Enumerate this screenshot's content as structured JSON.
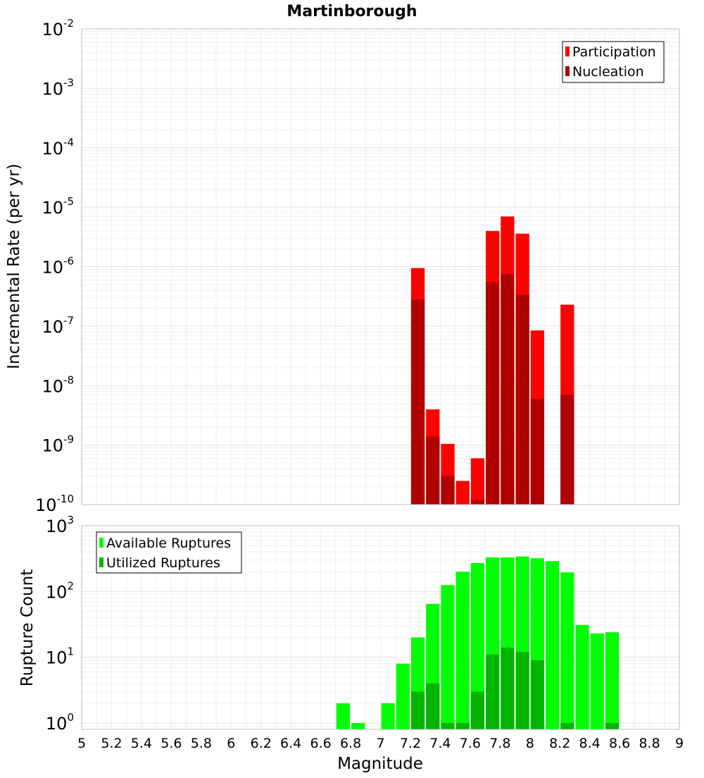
{
  "chart_data": [
    {
      "type": "bar",
      "title": "Martinborough",
      "ylabel": "Incremental Rate (per yr)",
      "xlabel": "",
      "yscale": "log",
      "ylim": [
        1e-10,
        0.01
      ],
      "xlim": [
        5,
        9
      ],
      "bar_width": 0.1,
      "grid": true,
      "legend_position": "top-right",
      "y_ticks": [
        {
          "mantissa": "10",
          "exp": "-10"
        },
        {
          "mantissa": "10",
          "exp": "-9"
        },
        {
          "mantissa": "10",
          "exp": "-8"
        },
        {
          "mantissa": "10",
          "exp": "-7"
        },
        {
          "mantissa": "10",
          "exp": "-6"
        },
        {
          "mantissa": "10",
          "exp": "-5"
        },
        {
          "mantissa": "10",
          "exp": "-4"
        },
        {
          "mantissa": "10",
          "exp": "-3"
        },
        {
          "mantissa": "10",
          "exp": "-2"
        }
      ],
      "series": [
        {
          "name": "Participation",
          "color": "#ff0000",
          "points": [
            {
              "x": 7.25,
              "y": 9.5e-07
            },
            {
              "x": 7.35,
              "y": 4e-09
            },
            {
              "x": 7.45,
              "y": 1.05e-09
            },
            {
              "x": 7.55,
              "y": 2.5e-10
            },
            {
              "x": 7.65,
              "y": 6e-10
            },
            {
              "x": 7.75,
              "y": 4e-06
            },
            {
              "x": 7.85,
              "y": 7e-06
            },
            {
              "x": 7.95,
              "y": 3.6e-06
            },
            {
              "x": 8.05,
              "y": 8.5e-08
            },
            {
              "x": 8.25,
              "y": 2.3e-07
            }
          ]
        },
        {
          "name": "Nucleation",
          "color": "#b00000",
          "points": [
            {
              "x": 7.25,
              "y": 2.8e-07
            },
            {
              "x": 7.35,
              "y": 1.4e-09
            },
            {
              "x": 7.45,
              "y": 3e-10
            },
            {
              "x": 7.65,
              "y": 1.2e-10
            },
            {
              "x": 7.75,
              "y": 5.5e-07
            },
            {
              "x": 7.85,
              "y": 7.5e-07
            },
            {
              "x": 7.95,
              "y": 3.4e-07
            },
            {
              "x": 8.05,
              "y": 6e-09
            },
            {
              "x": 8.25,
              "y": 7e-09
            }
          ]
        }
      ]
    },
    {
      "type": "bar",
      "title": "",
      "ylabel": "Rupture Count",
      "xlabel": "Magnitude",
      "yscale": "log",
      "ylim": [
        0.8,
        1000
      ],
      "xlim": [
        5,
        9
      ],
      "bar_width": 0.1,
      "grid": true,
      "legend_position": "top-left",
      "x_ticks": [
        "5",
        "5.2",
        "5.4",
        "5.6",
        "5.8",
        "6",
        "6.2",
        "6.4",
        "6.6",
        "6.8",
        "7",
        "7.2",
        "7.4",
        "7.6",
        "7.8",
        "8",
        "8.2",
        "8.4",
        "8.6",
        "8.8",
        "9"
      ],
      "y_ticks": [
        {
          "mantissa": "10",
          "exp": "0"
        },
        {
          "mantissa": "10",
          "exp": "1"
        },
        {
          "mantissa": "10",
          "exp": "2"
        },
        {
          "mantissa": "10",
          "exp": "3"
        }
      ],
      "series": [
        {
          "name": "Available Ruptures",
          "color": "#00ff00",
          "points": [
            {
              "x": 6.75,
              "y": 2
            },
            {
              "x": 6.85,
              "y": 1
            },
            {
              "x": 7.05,
              "y": 2
            },
            {
              "x": 7.15,
              "y": 8
            },
            {
              "x": 7.25,
              "y": 20
            },
            {
              "x": 7.35,
              "y": 65
            },
            {
              "x": 7.45,
              "y": 125
            },
            {
              "x": 7.55,
              "y": 200
            },
            {
              "x": 7.65,
              "y": 270
            },
            {
              "x": 7.75,
              "y": 330
            },
            {
              "x": 7.85,
              "y": 330
            },
            {
              "x": 7.95,
              "y": 340
            },
            {
              "x": 8.05,
              "y": 320
            },
            {
              "x": 8.15,
              "y": 290
            },
            {
              "x": 8.25,
              "y": 195
            },
            {
              "x": 8.35,
              "y": 31
            },
            {
              "x": 8.45,
              "y": 23
            },
            {
              "x": 8.55,
              "y": 24
            }
          ]
        },
        {
          "name": "Utilized Ruptures",
          "color": "#00b400",
          "points": [
            {
              "x": 7.25,
              "y": 3
            },
            {
              "x": 7.35,
              "y": 4
            },
            {
              "x": 7.45,
              "y": 1
            },
            {
              "x": 7.55,
              "y": 1
            },
            {
              "x": 7.65,
              "y": 3
            },
            {
              "x": 7.75,
              "y": 11
            },
            {
              "x": 7.85,
              "y": 14
            },
            {
              "x": 7.95,
              "y": 12
            },
            {
              "x": 8.05,
              "y": 9
            },
            {
              "x": 8.25,
              "y": 1
            },
            {
              "x": 8.55,
              "y": 1
            }
          ]
        }
      ]
    }
  ]
}
